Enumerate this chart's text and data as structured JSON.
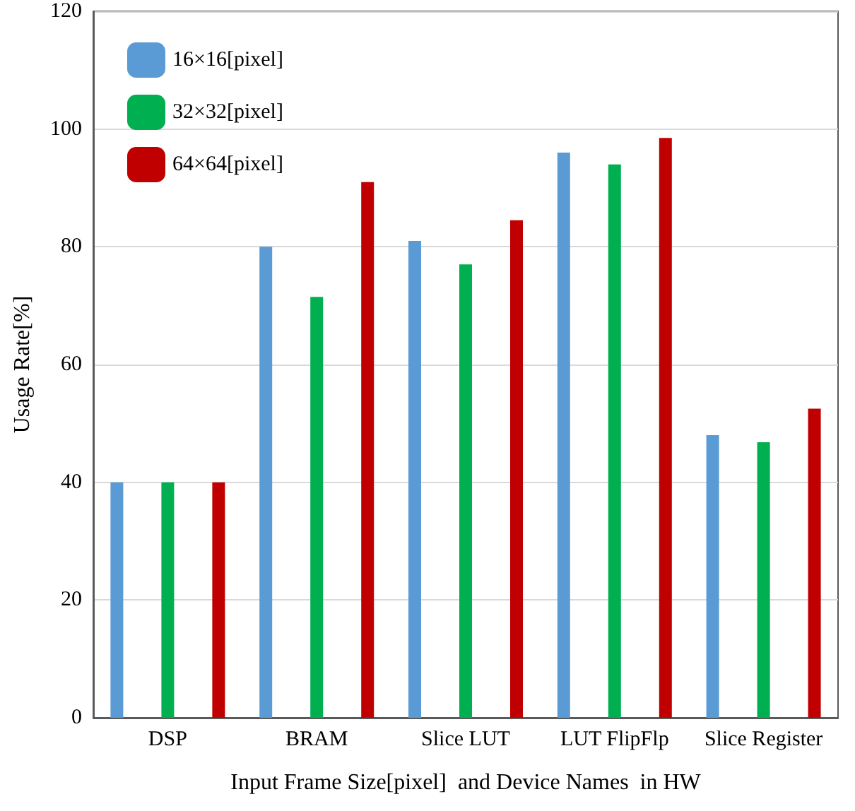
{
  "chart_data": {
    "type": "bar",
    "xlabel": "Input Frame Size[pixel]  and Device Names  in HW",
    "ylabel": "Usage Rate[%]",
    "categories": [
      "DSP",
      "BRAM",
      "Slice LUT",
      "LUT FlipFlp",
      "Slice Register"
    ],
    "series": [
      {
        "name": "16×16[pixel]",
        "color": "#5b9bd5",
        "values": [
          40,
          80,
          81,
          96,
          48
        ]
      },
      {
        "name": "32×32[pixel]",
        "color": "#00b050",
        "values": [
          40,
          71.5,
          77,
          94,
          46.8
        ]
      },
      {
        "name": "64×64[pixel]",
        "color": "#c00000",
        "values": [
          40,
          91,
          84.5,
          98.5,
          52.5
        ]
      }
    ],
    "ylim": [
      0,
      120
    ],
    "yticks": [
      0,
      20,
      40,
      60,
      80,
      100,
      120
    ],
    "grid": "y",
    "legend": "top left"
  }
}
